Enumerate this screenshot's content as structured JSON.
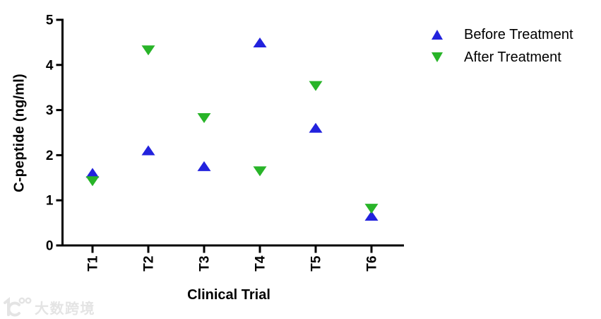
{
  "chart_data": {
    "type": "scatter",
    "title": "",
    "xlabel": "Clinical Trial",
    "ylabel": "C-peptide (ng/ml)",
    "categories": [
      "T1",
      "T2",
      "T3",
      "T4",
      "T5",
      "T6"
    ],
    "series": [
      {
        "name": "Before Treatment",
        "marker": "triangle-up",
        "color": "#2222DD",
        "values": [
          1.6,
          2.1,
          1.75,
          4.49,
          2.6,
          0.65
        ]
      },
      {
        "name": "After Treatment",
        "marker": "triangle-down",
        "color": "#28B428",
        "values": [
          1.43,
          4.33,
          2.83,
          1.65,
          3.54,
          0.82
        ]
      }
    ],
    "ylim": [
      0,
      5
    ],
    "yticks": [
      0,
      1,
      2,
      3,
      4,
      5
    ],
    "grid": false,
    "legend_position": "top-right",
    "axis_color": "#000000"
  },
  "watermark": {
    "logo_icon": "dashu-kuajing-logo-icon",
    "text": "大数跨境"
  }
}
